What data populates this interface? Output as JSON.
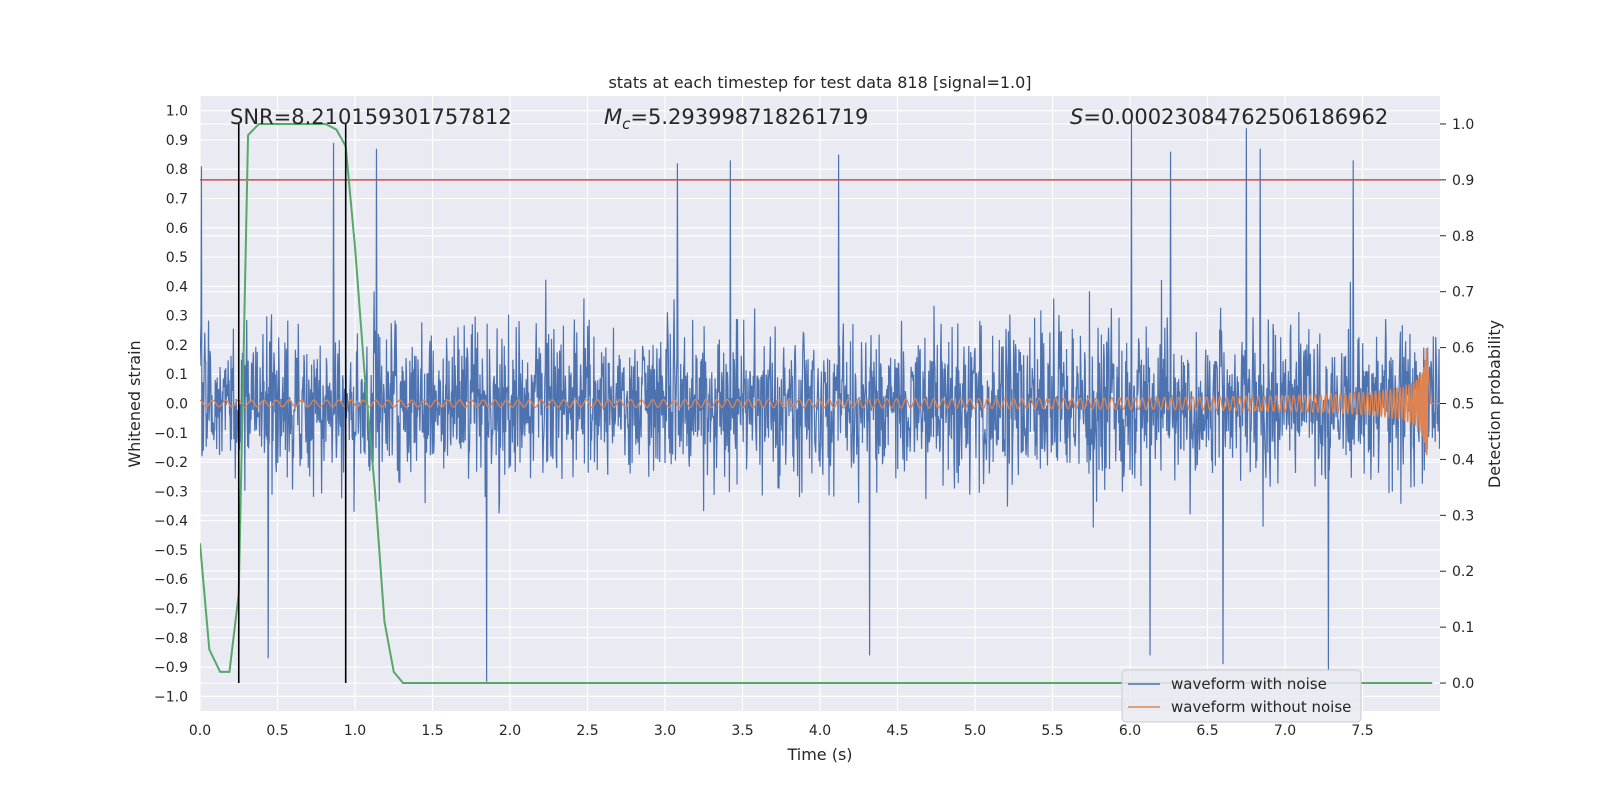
{
  "chart_data": {
    "type": "line",
    "title": "stats at each timestep for test data 818 [signal=1.0]",
    "xlabel": "Time (s)",
    "ylabel_left": "Whitened strain",
    "ylabel_right": "Detection probability",
    "xlim": [
      0.0,
      8.0
    ],
    "ylim_left": [
      -1.05,
      1.05
    ],
    "ylim_right": [
      -0.05,
      1.05
    ],
    "x_ticks": [
      "0.0",
      "0.5",
      "1.0",
      "1.5",
      "2.0",
      "2.5",
      "3.0",
      "3.5",
      "4.0",
      "4.5",
      "5.0",
      "5.5",
      "6.0",
      "6.5",
      "7.0",
      "7.5"
    ],
    "y_ticks_left": [
      "1.0",
      "0.9",
      "0.8",
      "0.7",
      "0.6",
      "0.5",
      "0.4",
      "0.3",
      "0.2",
      "0.1",
      "0.0",
      "−0.1",
      "−0.2",
      "−0.3",
      "−0.4",
      "−0.5",
      "−0.6",
      "−0.7",
      "−0.8",
      "−0.9",
      "−1.0"
    ],
    "y_ticks_right": [
      "1.0",
      "0.9",
      "0.8",
      "0.7",
      "0.6",
      "0.5",
      "0.4",
      "0.3",
      "0.2",
      "0.1",
      "0.0"
    ],
    "annotations": {
      "snr": "SNR=8.210159301757812",
      "mc_symbol": "M",
      "mc_sub": "c",
      "mc_value": "=5.293998718261719",
      "s_symbol": "S",
      "s_value": "=0.00023084762506186962"
    },
    "legend": {
      "noise": "waveform with noise",
      "clean": "waveform without noise"
    },
    "threshold_probability": 0.9,
    "window_lines_x": [
      0.25,
      0.94
    ],
    "noise_series": {
      "name": "waveform with noise",
      "color": "#4c72b0",
      "duration_s": 8.0,
      "typical_amplitude": 0.3,
      "notable_peaks": [
        [
          0.01,
          0.81
        ],
        [
          0.86,
          0.89
        ],
        [
          1.14,
          0.87
        ],
        [
          3.08,
          0.82
        ],
        [
          3.42,
          0.83
        ],
        [
          4.12,
          0.85
        ],
        [
          6.01,
          1.0
        ],
        [
          6.26,
          0.86
        ],
        [
          6.75,
          0.94
        ],
        [
          6.84,
          0.87
        ],
        [
          7.44,
          0.83
        ],
        [
          1.85,
          -0.95
        ],
        [
          0.44,
          -0.87
        ],
        [
          4.32,
          -0.86
        ],
        [
          6.13,
          -0.86
        ],
        [
          6.6,
          -0.89
        ],
        [
          7.28,
          -0.91
        ]
      ]
    },
    "clean_series": {
      "name": "waveform without noise",
      "color": "#dd8452",
      "start_amplitude": 0.01,
      "peak_amplitude": 0.2,
      "merger_time_s": 7.92
    },
    "probability_series": {
      "name": "detection probability",
      "color": "#55a868",
      "x": [
        0.0,
        0.06,
        0.13,
        0.19,
        0.25,
        0.31,
        0.38,
        0.44,
        0.5,
        0.56,
        0.63,
        0.69,
        0.75,
        0.81,
        0.88,
        0.94,
        1.0,
        1.06,
        1.13,
        1.19,
        1.25,
        1.31,
        1.38,
        1.5,
        2.0,
        3.0,
        4.0,
        5.0,
        6.0,
        7.0,
        7.95
      ],
      "y": [
        0.25,
        0.06,
        0.02,
        0.02,
        0.16,
        0.98,
        1.0,
        1.0,
        1.0,
        1.0,
        1.0,
        1.0,
        1.0,
        1.0,
        0.99,
        0.96,
        0.78,
        0.56,
        0.34,
        0.11,
        0.02,
        0.0,
        0.0,
        0.0,
        0.0,
        0.0,
        0.0,
        0.0,
        0.0,
        0.0,
        0.0
      ]
    },
    "colors": {
      "background": "#eaeaf2",
      "grid": "#ffffff",
      "threshold": "#c44e52",
      "window": "#000000",
      "text": "#262626"
    }
  }
}
